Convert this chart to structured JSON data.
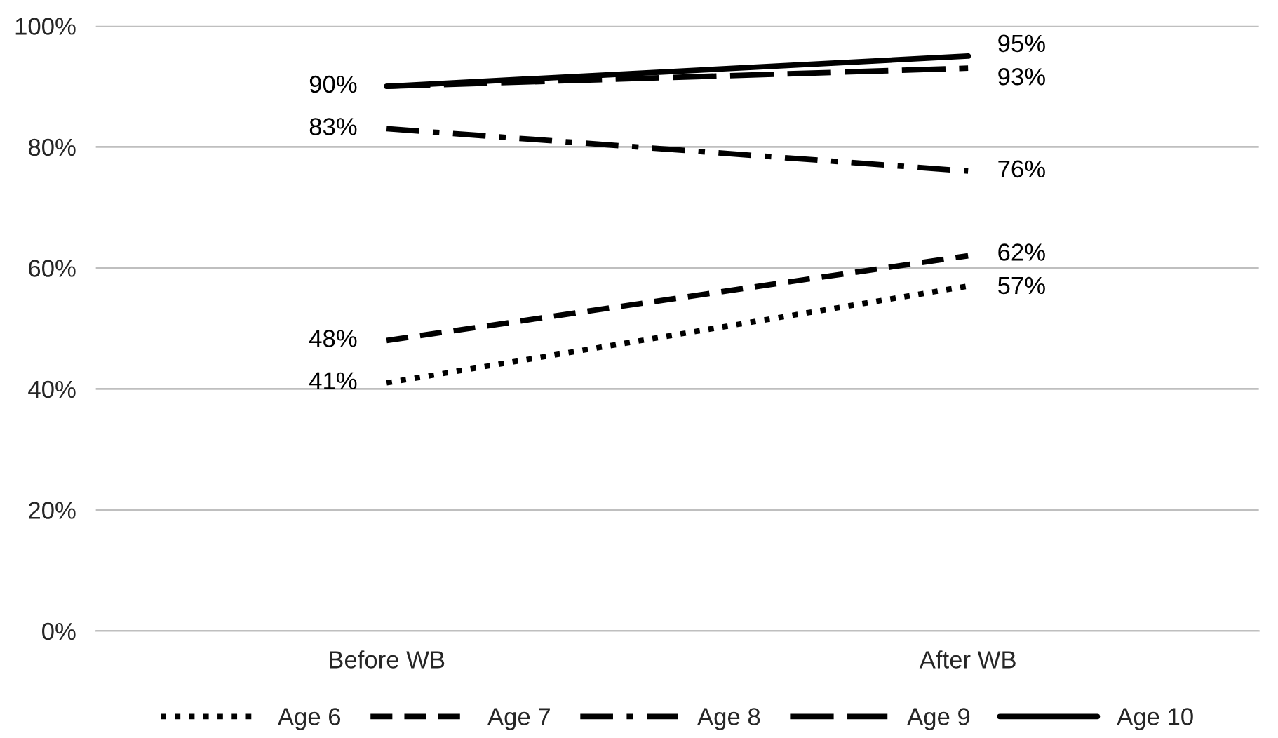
{
  "chart_data": {
    "type": "line",
    "categories": [
      "Before WB",
      "After WB"
    ],
    "series": [
      {
        "name": "Age 6",
        "color": "#000000",
        "line_style": "dotted",
        "values": [
          41,
          57
        ],
        "value_labels": [
          "41%",
          "57%"
        ]
      },
      {
        "name": "Age 7",
        "color": "#000000",
        "line_style": "dashed",
        "values": [
          48,
          62
        ],
        "value_labels": [
          "48%",
          "62%"
        ]
      },
      {
        "name": "Age 8",
        "color": "#000000",
        "line_style": "dashdot",
        "values": [
          83,
          76
        ],
        "value_labels": [
          "83%",
          "76%"
        ]
      },
      {
        "name": "Age 9",
        "color": "#000000",
        "line_style": "longdash",
        "values": [
          90,
          93
        ],
        "value_labels": [
          null,
          "93%"
        ]
      },
      {
        "name": "Age 10",
        "color": "#000000",
        "line_style": "solid",
        "values": [
          90,
          95
        ],
        "value_labels": [
          "90%",
          "95%"
        ]
      }
    ],
    "ylim": [
      0,
      100
    ],
    "yticks": [
      {
        "value": 0,
        "label": "0%"
      },
      {
        "value": 20,
        "label": "20%"
      },
      {
        "value": 40,
        "label": "40%"
      },
      {
        "value": 60,
        "label": "60%"
      },
      {
        "value": 80,
        "label": "80%"
      },
      {
        "value": 100,
        "label": "100%"
      }
    ],
    "grid": "y",
    "legend": "bottom",
    "marker": "none"
  }
}
